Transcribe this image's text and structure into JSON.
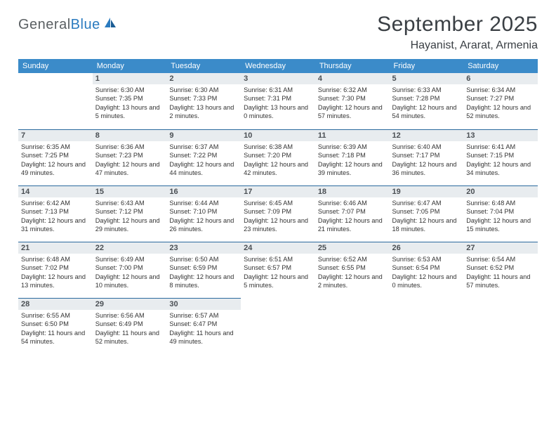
{
  "brand": {
    "general": "General",
    "blue": "Blue"
  },
  "title": "September 2025",
  "location": "Hayanist, Ararat, Armenia",
  "colors": {
    "header_bg": "#3b8bc9",
    "header_text": "#ffffff",
    "daynum_bg": "#e8ecef",
    "rule": "#2b6a9e",
    "text": "#333333",
    "title_text": "#3a3f44"
  },
  "day_headers": [
    "Sunday",
    "Monday",
    "Tuesday",
    "Wednesday",
    "Thursday",
    "Friday",
    "Saturday"
  ],
  "weeks": [
    [
      {
        "n": "",
        "sr": "",
        "ss": "",
        "dl": ""
      },
      {
        "n": "1",
        "sr": "Sunrise: 6:30 AM",
        "ss": "Sunset: 7:35 PM",
        "dl": "Daylight: 13 hours and 5 minutes."
      },
      {
        "n": "2",
        "sr": "Sunrise: 6:30 AM",
        "ss": "Sunset: 7:33 PM",
        "dl": "Daylight: 13 hours and 2 minutes."
      },
      {
        "n": "3",
        "sr": "Sunrise: 6:31 AM",
        "ss": "Sunset: 7:31 PM",
        "dl": "Daylight: 13 hours and 0 minutes."
      },
      {
        "n": "4",
        "sr": "Sunrise: 6:32 AM",
        "ss": "Sunset: 7:30 PM",
        "dl": "Daylight: 12 hours and 57 minutes."
      },
      {
        "n": "5",
        "sr": "Sunrise: 6:33 AM",
        "ss": "Sunset: 7:28 PM",
        "dl": "Daylight: 12 hours and 54 minutes."
      },
      {
        "n": "6",
        "sr": "Sunrise: 6:34 AM",
        "ss": "Sunset: 7:27 PM",
        "dl": "Daylight: 12 hours and 52 minutes."
      }
    ],
    [
      {
        "n": "7",
        "sr": "Sunrise: 6:35 AM",
        "ss": "Sunset: 7:25 PM",
        "dl": "Daylight: 12 hours and 49 minutes."
      },
      {
        "n": "8",
        "sr": "Sunrise: 6:36 AM",
        "ss": "Sunset: 7:23 PM",
        "dl": "Daylight: 12 hours and 47 minutes."
      },
      {
        "n": "9",
        "sr": "Sunrise: 6:37 AM",
        "ss": "Sunset: 7:22 PM",
        "dl": "Daylight: 12 hours and 44 minutes."
      },
      {
        "n": "10",
        "sr": "Sunrise: 6:38 AM",
        "ss": "Sunset: 7:20 PM",
        "dl": "Daylight: 12 hours and 42 minutes."
      },
      {
        "n": "11",
        "sr": "Sunrise: 6:39 AM",
        "ss": "Sunset: 7:18 PM",
        "dl": "Daylight: 12 hours and 39 minutes."
      },
      {
        "n": "12",
        "sr": "Sunrise: 6:40 AM",
        "ss": "Sunset: 7:17 PM",
        "dl": "Daylight: 12 hours and 36 minutes."
      },
      {
        "n": "13",
        "sr": "Sunrise: 6:41 AM",
        "ss": "Sunset: 7:15 PM",
        "dl": "Daylight: 12 hours and 34 minutes."
      }
    ],
    [
      {
        "n": "14",
        "sr": "Sunrise: 6:42 AM",
        "ss": "Sunset: 7:13 PM",
        "dl": "Daylight: 12 hours and 31 minutes."
      },
      {
        "n": "15",
        "sr": "Sunrise: 6:43 AM",
        "ss": "Sunset: 7:12 PM",
        "dl": "Daylight: 12 hours and 29 minutes."
      },
      {
        "n": "16",
        "sr": "Sunrise: 6:44 AM",
        "ss": "Sunset: 7:10 PM",
        "dl": "Daylight: 12 hours and 26 minutes."
      },
      {
        "n": "17",
        "sr": "Sunrise: 6:45 AM",
        "ss": "Sunset: 7:09 PM",
        "dl": "Daylight: 12 hours and 23 minutes."
      },
      {
        "n": "18",
        "sr": "Sunrise: 6:46 AM",
        "ss": "Sunset: 7:07 PM",
        "dl": "Daylight: 12 hours and 21 minutes."
      },
      {
        "n": "19",
        "sr": "Sunrise: 6:47 AM",
        "ss": "Sunset: 7:05 PM",
        "dl": "Daylight: 12 hours and 18 minutes."
      },
      {
        "n": "20",
        "sr": "Sunrise: 6:48 AM",
        "ss": "Sunset: 7:04 PM",
        "dl": "Daylight: 12 hours and 15 minutes."
      }
    ],
    [
      {
        "n": "21",
        "sr": "Sunrise: 6:48 AM",
        "ss": "Sunset: 7:02 PM",
        "dl": "Daylight: 12 hours and 13 minutes."
      },
      {
        "n": "22",
        "sr": "Sunrise: 6:49 AM",
        "ss": "Sunset: 7:00 PM",
        "dl": "Daylight: 12 hours and 10 minutes."
      },
      {
        "n": "23",
        "sr": "Sunrise: 6:50 AM",
        "ss": "Sunset: 6:59 PM",
        "dl": "Daylight: 12 hours and 8 minutes."
      },
      {
        "n": "24",
        "sr": "Sunrise: 6:51 AM",
        "ss": "Sunset: 6:57 PM",
        "dl": "Daylight: 12 hours and 5 minutes."
      },
      {
        "n": "25",
        "sr": "Sunrise: 6:52 AM",
        "ss": "Sunset: 6:55 PM",
        "dl": "Daylight: 12 hours and 2 minutes."
      },
      {
        "n": "26",
        "sr": "Sunrise: 6:53 AM",
        "ss": "Sunset: 6:54 PM",
        "dl": "Daylight: 12 hours and 0 minutes."
      },
      {
        "n": "27",
        "sr": "Sunrise: 6:54 AM",
        "ss": "Sunset: 6:52 PM",
        "dl": "Daylight: 11 hours and 57 minutes."
      }
    ],
    [
      {
        "n": "28",
        "sr": "Sunrise: 6:55 AM",
        "ss": "Sunset: 6:50 PM",
        "dl": "Daylight: 11 hours and 54 minutes."
      },
      {
        "n": "29",
        "sr": "Sunrise: 6:56 AM",
        "ss": "Sunset: 6:49 PM",
        "dl": "Daylight: 11 hours and 52 minutes."
      },
      {
        "n": "30",
        "sr": "Sunrise: 6:57 AM",
        "ss": "Sunset: 6:47 PM",
        "dl": "Daylight: 11 hours and 49 minutes."
      },
      {
        "n": "",
        "sr": "",
        "ss": "",
        "dl": ""
      },
      {
        "n": "",
        "sr": "",
        "ss": "",
        "dl": ""
      },
      {
        "n": "",
        "sr": "",
        "ss": "",
        "dl": ""
      },
      {
        "n": "",
        "sr": "",
        "ss": "",
        "dl": ""
      }
    ]
  ]
}
